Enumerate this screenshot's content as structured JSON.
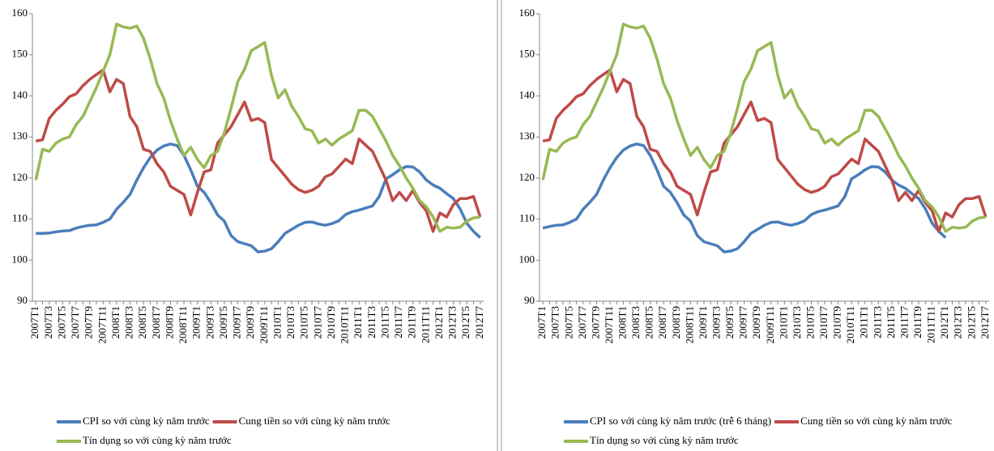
{
  "chart_data": [
    {
      "type": "line",
      "categories": [
        "2007T1",
        null,
        "2007T3",
        null,
        "2007T5",
        null,
        "2007T7",
        null,
        "2007T9",
        null,
        "2007T11",
        null,
        "2008T1",
        null,
        "2008T3",
        null,
        "2008T5",
        null,
        "2008T7",
        null,
        "2008T9",
        null,
        "2008T11",
        null,
        "2009T1",
        null,
        "2009T3",
        null,
        "2009T5",
        null,
        "2009T7",
        null,
        "2009T9",
        null,
        "2009T11",
        null,
        "2010T1",
        null,
        "2010T3",
        null,
        "2010T5",
        null,
        "2010T7",
        null,
        "2010T9",
        null,
        "2010T11",
        null,
        "2011T1",
        null,
        "2011T3",
        null,
        "2011T5",
        null,
        "2011T7",
        null,
        "2011T9",
        null,
        "2011T11",
        null,
        "2012T1",
        null,
        "2012T3",
        null,
        "2012T5",
        null,
        "2012T7"
      ],
      "ylim": [
        90,
        160
      ],
      "yticks": [
        90,
        100,
        110,
        120,
        130,
        140,
        150,
        160
      ],
      "grid": false,
      "series": [
        {
          "name": "CPI so với cùng kỳ năm trước",
          "color": "#4a7ebb",
          "values": [
            106.5,
            106.5,
            106.6,
            106.9,
            107.1,
            107.2,
            107.8,
            108.2,
            108.5,
            108.6,
            109.2,
            110,
            112.4,
            114.1,
            116,
            119.5,
            122.5,
            125,
            126.8,
            127.8,
            128.3,
            127.9,
            125.5,
            122,
            118,
            116.5,
            114,
            111,
            109.5,
            106,
            104.5,
            104,
            103.5,
            102,
            102.2,
            102.8,
            104.5,
            106.5,
            107.5,
            108.5,
            109.2,
            109.3,
            108.8,
            108.5,
            108.9,
            109.6,
            111.1,
            111.8,
            112.2,
            112.7,
            113.2,
            115.5,
            119.8,
            120.8,
            122,
            122.8,
            122.7,
            121.5,
            119.5,
            118.3,
            117.5,
            116.2,
            115,
            112.5,
            109,
            107,
            105.5
          ]
        },
        {
          "name": "Cung tiền so với cùng kỳ năm trước",
          "color": "#be4b48",
          "values": [
            129,
            129.3,
            134.5,
            136.5,
            138,
            139.8,
            140.5,
            142.5,
            144,
            145.2,
            146.3,
            141,
            144,
            143,
            135,
            132.5,
            127,
            126.5,
            123.5,
            121.5,
            118,
            117,
            116,
            111,
            116.5,
            121.5,
            122,
            128.5,
            130.5,
            132.5,
            135.5,
            138.5,
            134,
            134.5,
            133.5,
            124.5,
            122.5,
            120.5,
            118.5,
            117.2,
            116.5,
            117,
            118,
            120.3,
            121,
            122.8,
            124.6,
            123.5,
            129.5,
            128,
            126.5,
            123,
            119.5,
            114.5,
            116.5,
            114.5,
            117,
            114,
            112,
            107,
            111.5,
            110.5,
            113.5,
            115,
            115,
            115.5,
            110.5
          ]
        },
        {
          "name": "Tín dụng so với cùng kỳ năm trước",
          "color": "#98b954",
          "values": [
            119.5,
            127,
            126.5,
            128.5,
            129.5,
            130,
            133,
            135,
            138.5,
            142,
            146,
            150,
            157.5,
            156.8,
            156.5,
            157,
            154,
            149,
            143,
            139.5,
            134,
            129.5,
            125.5,
            127.5,
            124.5,
            122.5,
            125.5,
            126.5,
            131,
            137,
            143.5,
            146.5,
            151,
            152,
            153,
            145,
            139.5,
            141.5,
            137.5,
            135,
            132,
            131.5,
            128.5,
            129.5,
            128,
            129.5,
            130.5,
            131.5,
            136.5,
            136.5,
            135,
            132,
            129,
            125.5,
            123,
            120,
            117.5,
            114.5,
            113,
            110.5,
            107,
            108,
            107.8,
            108,
            109.5,
            110.3,
            110.5
          ]
        }
      ]
    },
    {
      "type": "line",
      "categories": [
        "2007T1",
        null,
        "2007T3",
        null,
        "2007T5",
        null,
        "2007T7",
        null,
        "2007T9",
        null,
        "2007T11",
        null,
        "2008T1",
        null,
        "2008T3",
        null,
        "2008T5",
        null,
        "2008T7",
        null,
        "2008T9",
        null,
        "2008T11",
        null,
        "2009T1",
        null,
        "2009T3",
        null,
        "2009T5",
        null,
        "2009T7",
        null,
        "2009T9",
        null,
        "2009T11",
        null,
        "2010T1",
        null,
        "2010T3",
        null,
        "2010T5",
        null,
        "2010T7",
        null,
        "2010T9",
        null,
        "2010T11",
        null,
        "2011T1",
        null,
        "2011T3",
        null,
        "2011T5",
        null,
        "2011T7",
        null,
        "2011T9",
        null,
        "2011T11",
        null,
        "2012T1",
        null,
        "2012T3",
        null,
        "2012T5",
        null,
        "2012T7"
      ],
      "ylim": [
        90,
        160
      ],
      "yticks": [
        90,
        100,
        110,
        120,
        130,
        140,
        150,
        160
      ],
      "grid": false,
      "series": [
        {
          "name": "CPI so với cùng kỳ năm trước (trễ 6 tháng)",
          "color": "#4a7ebb",
          "values": [
            107.8,
            108.2,
            108.5,
            108.6,
            109.2,
            110,
            112.4,
            114.1,
            116,
            119.5,
            122.5,
            125,
            126.8,
            127.8,
            128.3,
            127.9,
            125.5,
            122,
            118,
            116.5,
            114,
            111,
            109.5,
            106,
            104.5,
            104,
            103.5,
            102,
            102.2,
            102.8,
            104.5,
            106.5,
            107.5,
            108.5,
            109.2,
            109.3,
            108.8,
            108.5,
            108.9,
            109.6,
            111.1,
            111.8,
            112.2,
            112.7,
            113.2,
            115.5,
            119.8,
            120.8,
            122,
            122.8,
            122.7,
            121.5,
            119.5,
            118.3,
            117.5,
            116.2,
            115,
            112.5,
            109,
            107,
            105.5,
            null,
            null,
            null,
            null,
            null,
            null
          ]
        },
        {
          "name": "Cung tiền so với cùng kỳ năm trước",
          "color": "#be4b48",
          "values": [
            129,
            129.3,
            134.5,
            136.5,
            138,
            139.8,
            140.5,
            142.5,
            144,
            145.2,
            146.3,
            141,
            144,
            143,
            135,
            132.5,
            127,
            126.5,
            123.5,
            121.5,
            118,
            117,
            116,
            111,
            116.5,
            121.5,
            122,
            128.5,
            130.5,
            132.5,
            135.5,
            138.5,
            134,
            134.5,
            133.5,
            124.5,
            122.5,
            120.5,
            118.5,
            117.2,
            116.5,
            117,
            118,
            120.3,
            121,
            122.8,
            124.6,
            123.5,
            129.5,
            128,
            126.5,
            123,
            119.5,
            114.5,
            116.5,
            114.5,
            117,
            114,
            112,
            107,
            111.5,
            110.5,
            113.5,
            115,
            115,
            115.5,
            110.5
          ]
        },
        {
          "name": "Tín dụng so với cùng kỳ năm trước",
          "color": "#98b954",
          "values": [
            119.5,
            127,
            126.5,
            128.5,
            129.5,
            130,
            133,
            135,
            138.5,
            142,
            146,
            150,
            157.5,
            156.8,
            156.5,
            157,
            154,
            149,
            143,
            139.5,
            134,
            129.5,
            125.5,
            127.5,
            124.5,
            122.5,
            125.5,
            126.5,
            131,
            137,
            143.5,
            146.5,
            151,
            152,
            153,
            145,
            139.5,
            141.5,
            137.5,
            135,
            132,
            131.5,
            128.5,
            129.5,
            128,
            129.5,
            130.5,
            131.5,
            136.5,
            136.5,
            135,
            132,
            129,
            125.5,
            123,
            120,
            117.5,
            114.5,
            113,
            110.5,
            107,
            108,
            107.8,
            108,
            109.5,
            110.3,
            110.5
          ]
        }
      ]
    }
  ]
}
